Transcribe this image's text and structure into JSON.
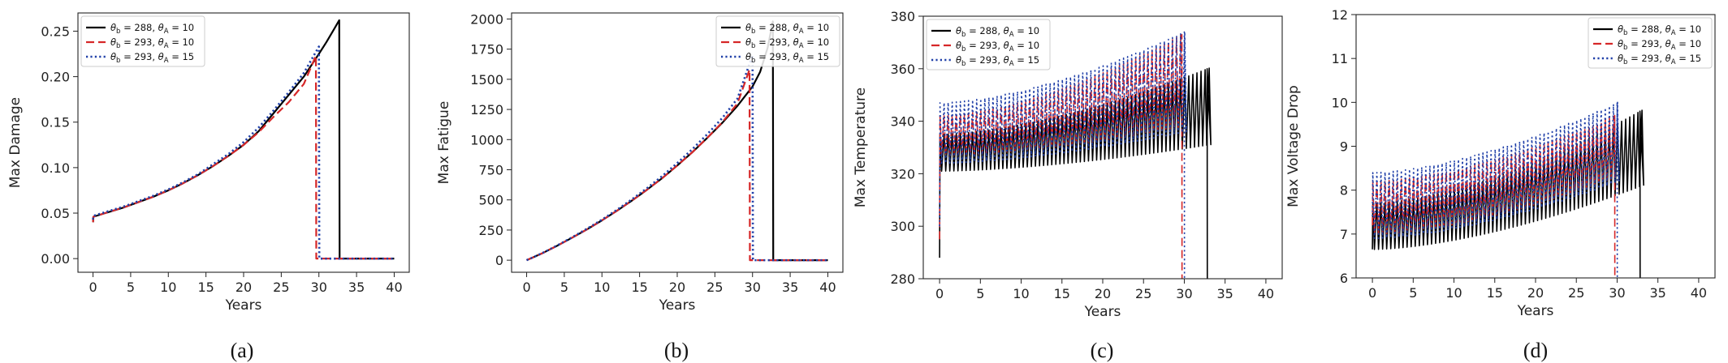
{
  "figure": {
    "captions": [
      "(a)",
      "(b)",
      "(c)",
      "(d)"
    ]
  },
  "legend_entries": [
    {
      "label": "θb = 288, θA = 10",
      "theta_b": "288",
      "theta_A": "10",
      "color": "#000000",
      "dash": "solid"
    },
    {
      "label": "θb = 293, θA = 10",
      "theta_b": "293",
      "theta_A": "10",
      "color": "#d62728",
      "dash": "dashed"
    },
    {
      "label": "θb = 293, θA = 15",
      "theta_b": "293",
      "theta_A": "15",
      "color": "#1f3fa8",
      "dash": "dotted"
    }
  ],
  "chart_data": [
    {
      "type": "line",
      "panel": "(a)",
      "xlabel": "Years",
      "ylabel": "Max Damage",
      "xlim": [
        -2,
        42
      ],
      "ylim": [
        -0.015,
        0.27
      ],
      "xticks": [
        0,
        5,
        10,
        15,
        20,
        25,
        30,
        35,
        40
      ],
      "yticks": [
        0.0,
        0.05,
        0.1,
        0.15,
        0.2,
        0.25
      ],
      "ytick_decimals": 2,
      "legend_position": "top-left",
      "grid": false,
      "series": [
        {
          "name": "θb = 288, θA = 10",
          "x": [
            0,
            0.05,
            2,
            4,
            6,
            8,
            10,
            12,
            14,
            16,
            18,
            20,
            22,
            24,
            26,
            28,
            30,
            31,
            32,
            32.7,
            32.75,
            33,
            35,
            40
          ],
          "y": [
            0.04,
            0.046,
            0.051,
            0.056,
            0.062,
            0.068,
            0.075,
            0.083,
            0.092,
            0.102,
            0.113,
            0.125,
            0.14,
            0.16,
            0.18,
            0.2,
            0.225,
            0.238,
            0.252,
            0.262,
            0.0,
            0.0,
            0.0,
            0.0
          ]
        },
        {
          "name": "θb = 293, θA = 10",
          "x": [
            0,
            0.05,
            2,
            4,
            6,
            8,
            10,
            12,
            14,
            16,
            18,
            20,
            22,
            24,
            26,
            28,
            29.6,
            29.65,
            32,
            35,
            40
          ],
          "y": [
            0.04,
            0.046,
            0.051,
            0.056,
            0.062,
            0.068,
            0.075,
            0.083,
            0.092,
            0.102,
            0.113,
            0.125,
            0.139,
            0.156,
            0.172,
            0.192,
            0.223,
            0.0,
            0.0,
            0.0,
            0.0
          ]
        },
        {
          "name": "θb = 293, θA = 15",
          "x": [
            0,
            0.05,
            2,
            4,
            6,
            8,
            10,
            12,
            14,
            16,
            18,
            20,
            22,
            24,
            26,
            28,
            30,
            30.05,
            32,
            35,
            40
          ],
          "y": [
            0.043,
            0.047,
            0.052,
            0.057,
            0.063,
            0.069,
            0.076,
            0.084,
            0.093,
            0.104,
            0.115,
            0.128,
            0.144,
            0.163,
            0.183,
            0.204,
            0.233,
            0.0,
            0.0,
            0.0,
            0.0
          ]
        }
      ]
    },
    {
      "type": "line",
      "panel": "(b)",
      "xlabel": "Years",
      "ylabel": "Max Fatigue",
      "xlim": [
        -2,
        42
      ],
      "ylim": [
        -100,
        2050
      ],
      "xticks": [
        0,
        5,
        10,
        15,
        20,
        25,
        30,
        35,
        40
      ],
      "yticks": [
        0,
        250,
        500,
        750,
        1000,
        1250,
        1500,
        1750,
        2000
      ],
      "ytick_decimals": 0,
      "legend_position": "top-right",
      "grid": false,
      "series": [
        {
          "name": "θb = 288, θA = 10",
          "x": [
            0,
            2,
            4,
            6,
            8,
            10,
            12,
            14,
            16,
            18,
            20,
            22,
            24,
            26,
            28,
            30,
            31,
            32,
            32.7,
            32.75,
            33,
            35,
            40
          ],
          "y": [
            0,
            55,
            118,
            185,
            255,
            330,
            410,
            495,
            585,
            680,
            785,
            895,
            1015,
            1140,
            1280,
            1440,
            1560,
            1760,
            1980,
            0,
            0,
            0,
            0
          ]
        },
        {
          "name": "θb = 293, θA = 10",
          "x": [
            0,
            2,
            4,
            6,
            8,
            10,
            12,
            14,
            16,
            18,
            20,
            22,
            24,
            26,
            28,
            29.6,
            29.65,
            32,
            35,
            40
          ],
          "y": [
            0,
            55,
            118,
            185,
            255,
            330,
            410,
            495,
            585,
            680,
            785,
            895,
            1015,
            1145,
            1300,
            1580,
            0,
            0,
            0,
            0
          ]
        },
        {
          "name": "θb = 293, θA = 15",
          "x": [
            0,
            2,
            4,
            6,
            8,
            10,
            12,
            14,
            16,
            18,
            20,
            22,
            24,
            26,
            28,
            30,
            30.05,
            32,
            35,
            40
          ],
          "y": [
            0,
            56,
            120,
            188,
            260,
            336,
            418,
            505,
            598,
            697,
            805,
            920,
            1045,
            1180,
            1340,
            1700,
            0,
            0,
            0,
            0
          ]
        }
      ]
    },
    {
      "type": "line",
      "panel": "(c)",
      "xlabel": "Years",
      "ylabel": "Max Temperature",
      "xlim": [
        -2,
        42
      ],
      "ylim": [
        280,
        380
      ],
      "xticks": [
        0,
        5,
        10,
        15,
        20,
        25,
        30,
        35,
        40
      ],
      "yticks": [
        280,
        300,
        320,
        340,
        360,
        380
      ],
      "ytick_decimals": 0,
      "legend_position": "top-left",
      "grid": false,
      "series": [
        {
          "name": "θb = 288, θA = 10",
          "start": 0,
          "end": 32.8,
          "period": 0.5,
          "low": [
            321,
            331
          ],
          "high": [
            335,
            360
          ],
          "initial": 288,
          "drop": 280
        },
        {
          "name": "θb = 293, θA = 10",
          "start": 0,
          "end": 29.7,
          "period": 0.5,
          "low": [
            327,
            338
          ],
          "high": [
            342,
            373
          ],
          "initial": 295,
          "drop": 280
        },
        {
          "name": "θb = 293, θA = 15",
          "start": 0,
          "end": 30.0,
          "period": 0.5,
          "low": [
            324,
            336
          ],
          "high": [
            347,
            374
          ],
          "initial": 300,
          "drop": 280
        }
      ]
    },
    {
      "type": "line",
      "panel": "(d)",
      "xlabel": "Years",
      "ylabel": "Max Voltage Drop",
      "xlim": [
        -2,
        42
      ],
      "ylim": [
        6,
        12
      ],
      "xticks": [
        0,
        5,
        10,
        15,
        20,
        25,
        30,
        35,
        40
      ],
      "yticks": [
        6,
        7,
        8,
        9,
        10,
        11,
        12
      ],
      "ytick_decimals": 0,
      "legend_position": "top-right",
      "grid": false,
      "series": [
        {
          "name": "θb = 288, θA = 10",
          "start": 0,
          "end": 32.8,
          "period": 0.5,
          "low": [
            6.65,
            8.1
          ],
          "high": [
            7.7,
            9.8
          ],
          "initial": 6.65,
          "drop": 6
        },
        {
          "name": "θb = 293, θA = 10",
          "start": 0,
          "end": 29.7,
          "period": 0.5,
          "low": [
            7.0,
            8.3
          ],
          "high": [
            8.2,
            9.7
          ],
          "initial": 7.2,
          "drop": 6
        },
        {
          "name": "θb = 293, θA = 15",
          "start": 0,
          "end": 30.0,
          "period": 0.5,
          "low": [
            6.9,
            8.2
          ],
          "high": [
            8.4,
            10.0
          ],
          "initial": 7.4,
          "drop": 6
        }
      ]
    }
  ]
}
